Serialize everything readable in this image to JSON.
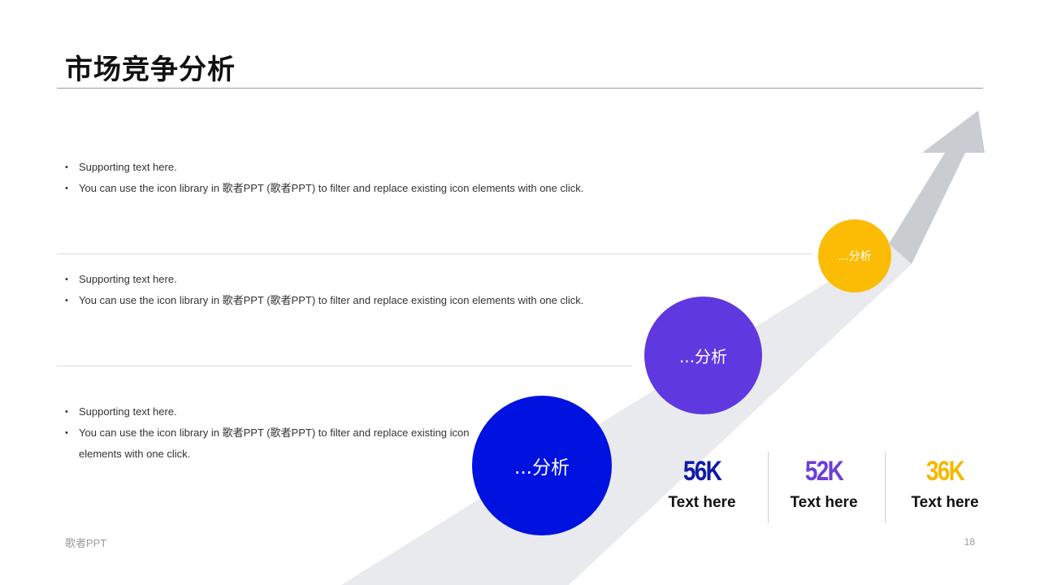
{
  "title": "市场竞争分析",
  "sections": [
    {
      "bullets": [
        "Supporting  text here.",
        "You can use the icon library in 歌者PPT  (歌者PPT) to filter and replace existing icon elements with one click."
      ]
    },
    {
      "bullets": [
        "Supporting  text here.",
        "You can use the icon library in 歌者PPT  (歌者PPT) to filter and replace existing icon elements with one click."
      ]
    },
    {
      "bullets": [
        "Supporting  text here.",
        "You can use the icon library in 歌者PPT  (歌者PPT) to filter and replace existing icon elements with one click."
      ]
    }
  ],
  "circles": [
    {
      "label": "...分析",
      "color": "#0012e0"
    },
    {
      "label": "...分析",
      "color": "#5f38e0"
    },
    {
      "label": "...分析",
      "color": "#fcbc05"
    }
  ],
  "stats": [
    {
      "value": "56K",
      "label": "Text here",
      "color": "#0f1aa8"
    },
    {
      "value": "52K",
      "label": "Text here",
      "color": "#6a3fd6"
    },
    {
      "value": "36K",
      "label": "Text here",
      "color": "#f5b800"
    }
  ],
  "footer": {
    "brand": "歌者PPT",
    "page": "18"
  },
  "colors": {
    "arrow_head": "#c9cdd2",
    "arrow_band": "#e9eaed"
  }
}
